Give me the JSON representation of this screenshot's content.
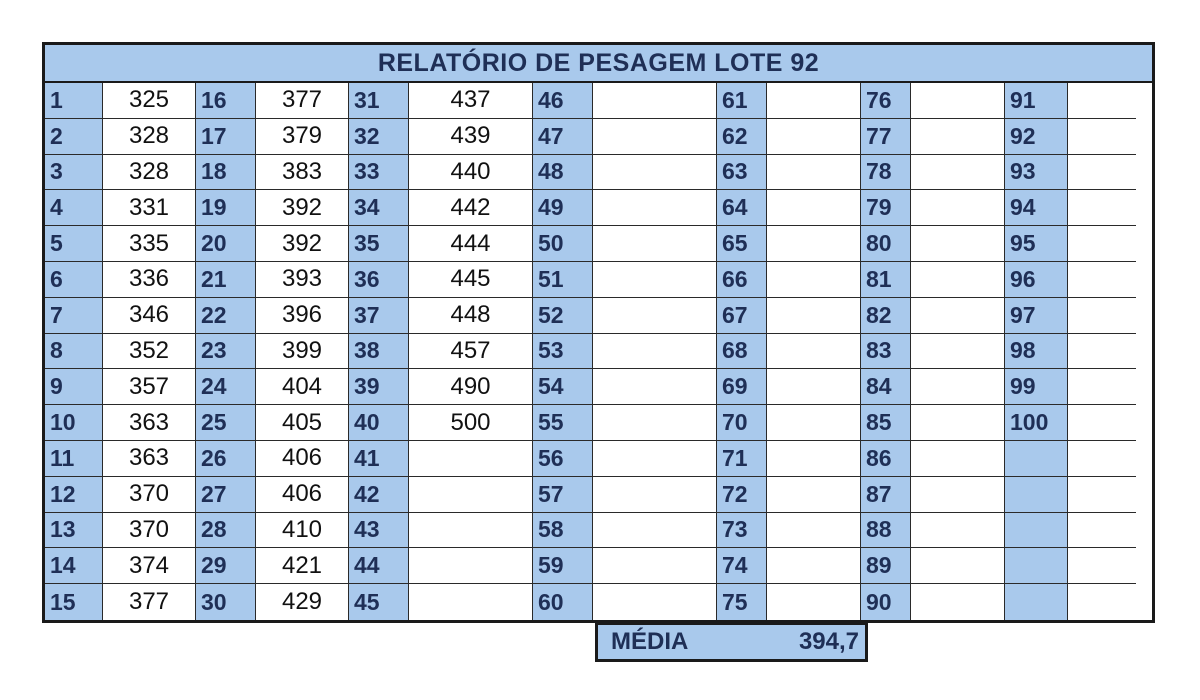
{
  "title": "RELATÓRIO DE PESAGEM LOTE 92",
  "colors": {
    "header_fill": "#a9c9ec",
    "header_text": "#1f2f56",
    "border": "#1a1a1a"
  },
  "columns": [
    {
      "ids": [
        "1",
        "2",
        "3",
        "4",
        "5",
        "6",
        "7",
        "8",
        "9",
        "10",
        "11",
        "12",
        "13",
        "14",
        "15"
      ],
      "weights": [
        "325",
        "328",
        "328",
        "331",
        "335",
        "336",
        "346",
        "352",
        "357",
        "363",
        "363",
        "370",
        "370",
        "374",
        "377"
      ]
    },
    {
      "ids": [
        "16",
        "17",
        "18",
        "19",
        "20",
        "21",
        "22",
        "23",
        "24",
        "25",
        "26",
        "27",
        "28",
        "29",
        "30"
      ],
      "weights": [
        "377",
        "379",
        "383",
        "392",
        "392",
        "393",
        "396",
        "399",
        "404",
        "405",
        "406",
        "406",
        "410",
        "421",
        "429"
      ]
    },
    {
      "ids": [
        "31",
        "32",
        "33",
        "34",
        "35",
        "36",
        "37",
        "38",
        "39",
        "40",
        "41",
        "42",
        "43",
        "44",
        "45"
      ],
      "weights": [
        "437",
        "439",
        "440",
        "442",
        "444",
        "445",
        "448",
        "457",
        "490",
        "500",
        "",
        "",
        "",
        "",
        ""
      ]
    },
    {
      "ids": [
        "46",
        "47",
        "48",
        "49",
        "50",
        "51",
        "52",
        "53",
        "54",
        "55",
        "56",
        "57",
        "58",
        "59",
        "60"
      ],
      "weights": [
        "",
        "",
        "",
        "",
        "",
        "",
        "",
        "",
        "",
        "",
        "",
        "",
        "",
        "",
        ""
      ]
    },
    {
      "ids": [
        "61",
        "62",
        "63",
        "64",
        "65",
        "66",
        "67",
        "68",
        "69",
        "70",
        "71",
        "72",
        "73",
        "74",
        "75"
      ],
      "weights": [
        "",
        "",
        "",
        "",
        "",
        "",
        "",
        "",
        "",
        "",
        "",
        "",
        "",
        "",
        ""
      ]
    },
    {
      "ids": [
        "76",
        "77",
        "78",
        "79",
        "80",
        "81",
        "82",
        "83",
        "84",
        "85",
        "86",
        "87",
        "88",
        "89",
        "90"
      ],
      "weights": [
        "",
        "",
        "",
        "",
        "",
        "",
        "",
        "",
        "",
        "",
        "",
        "",
        "",
        "",
        ""
      ]
    },
    {
      "ids": [
        "91",
        "92",
        "93",
        "94",
        "95",
        "96",
        "97",
        "98",
        "99",
        "100",
        "",
        "",
        "",
        "",
        ""
      ],
      "weights": [
        "",
        "",
        "",
        "",
        "",
        "",
        "",
        "",
        "",
        "",
        "",
        "",
        "",
        "",
        ""
      ]
    }
  ],
  "summary": {
    "label": "MÉDIA",
    "value": "394,7"
  }
}
